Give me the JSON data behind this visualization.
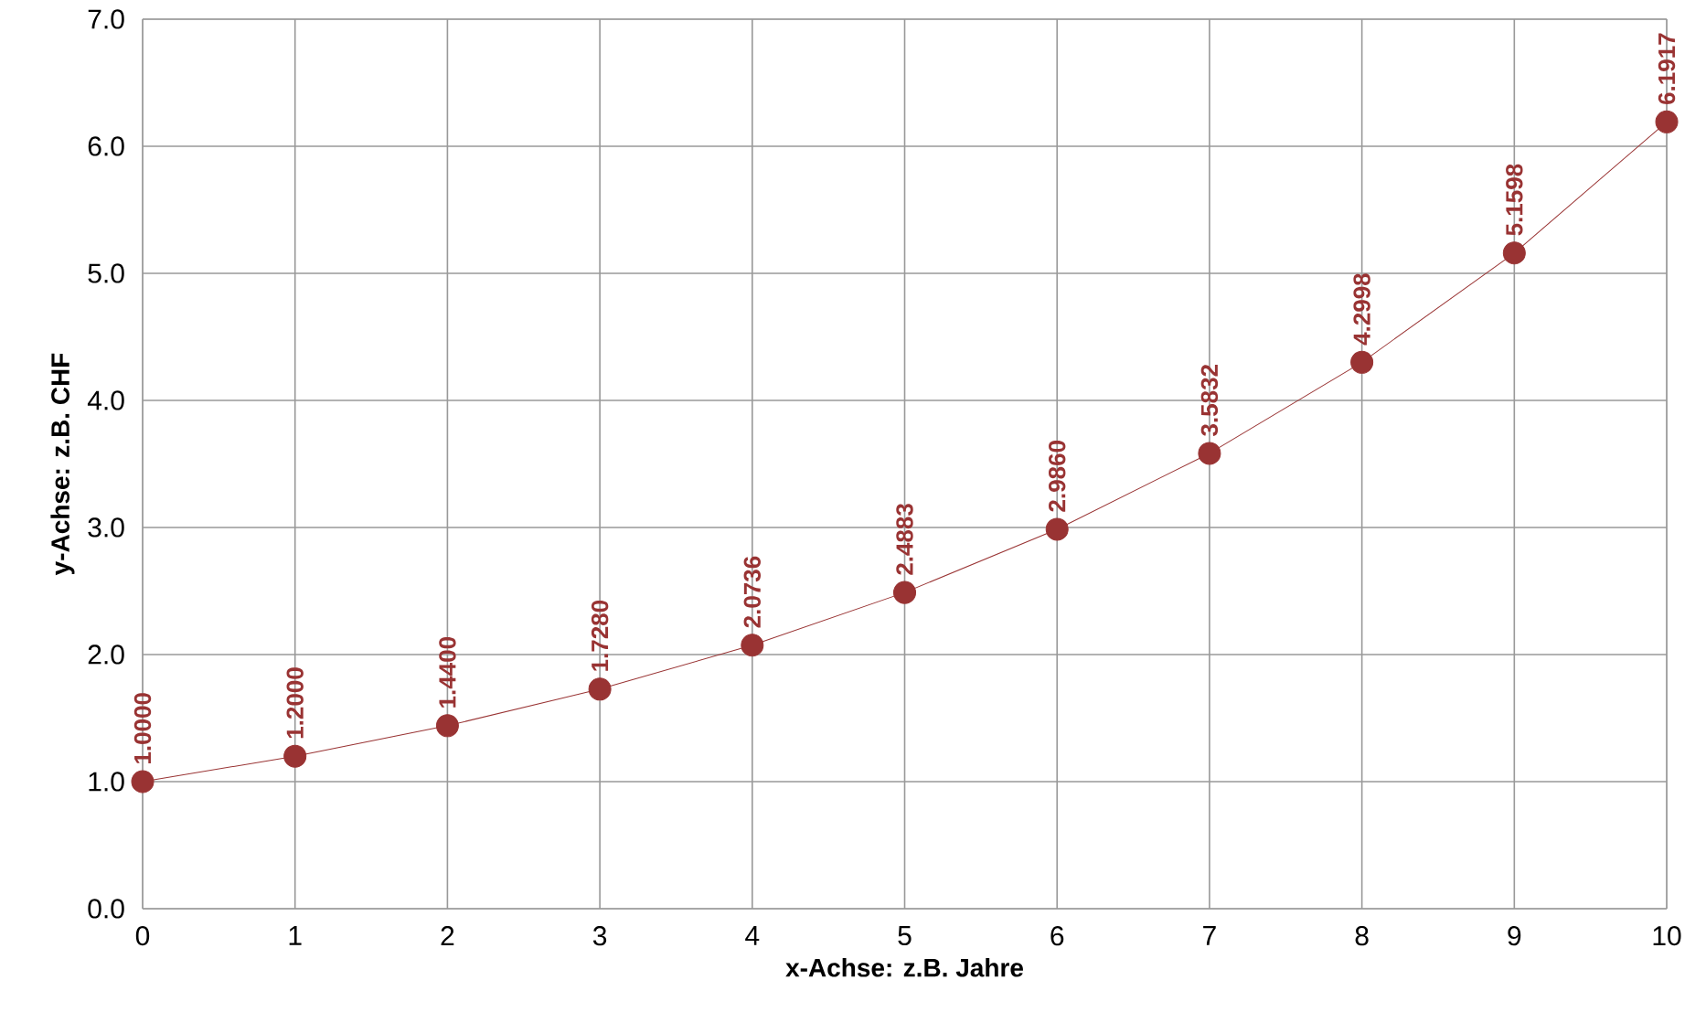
{
  "chart_data": {
    "type": "line",
    "xlabel": "x-Achse: z.B. Jahre",
    "ylabel": "y-Achse: z.B. CHF",
    "x": [
      0,
      1,
      2,
      3,
      4,
      5,
      6,
      7,
      8,
      9,
      10
    ],
    "series": [
      {
        "color": "#993333",
        "values": [
          1.0,
          1.2,
          1.44,
          1.728,
          2.0736,
          2.4883,
          2.986,
          3.5832,
          4.2998,
          5.1598,
          6.1917
        ],
        "value_labels": [
          "1.0000",
          "1.2000",
          "1.4400",
          "1.7280",
          "2.0736",
          "2.4883",
          "2.9860",
          "3.5832",
          "4.2998",
          "5.1598",
          "6.1917"
        ]
      }
    ],
    "xlim": [
      0,
      10
    ],
    "xticks": [
      0,
      1,
      2,
      3,
      4,
      5,
      6,
      7,
      8,
      9,
      10
    ],
    "ylim": [
      0,
      7
    ],
    "yticks": [
      {
        "value": 0,
        "label": "0.0"
      },
      {
        "value": 1,
        "label": "1.0"
      },
      {
        "value": 2,
        "label": "2.0"
      },
      {
        "value": 3,
        "label": "3.0"
      },
      {
        "value": 4,
        "label": "4.0"
      },
      {
        "value": 5,
        "label": "5.0"
      },
      {
        "value": 6,
        "label": "6.0"
      },
      {
        "value": 7,
        "label": "7.0"
      }
    ],
    "grid": true,
    "marker": "circle",
    "line_style": "solid"
  }
}
